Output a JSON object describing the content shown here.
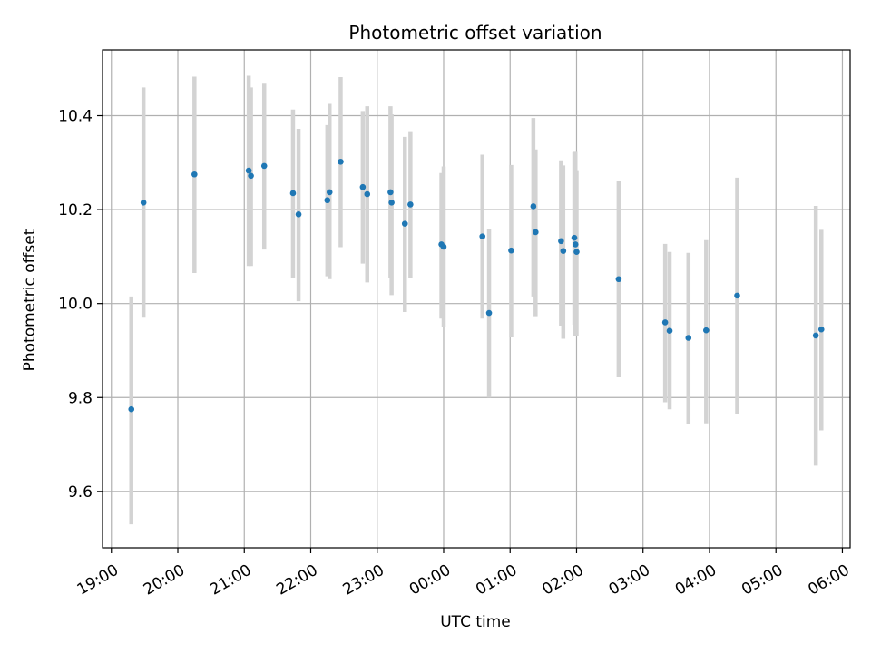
{
  "chart_data": {
    "type": "scatter",
    "title": "Photometric offset variation",
    "xlabel": "UTC time",
    "ylabel": "Photometric offset",
    "grid": true,
    "xlim": [
      "18:52",
      "06:07"
    ],
    "ylim": [
      9.48,
      10.54
    ],
    "x_tick_labels": [
      "19:00",
      "20:00",
      "21:00",
      "22:00",
      "23:00",
      "00:00",
      "01:00",
      "02:00",
      "03:00",
      "04:00",
      "05:00",
      "06:00"
    ],
    "y_tick_labels": [
      "9.6",
      "9.8",
      "10.0",
      "10.2",
      "10.4"
    ],
    "colors": {
      "points": "#1f77b4",
      "errorbars": "#d3d3d3",
      "grid": "#b0b0b0"
    },
    "series": [
      {
        "x": [
          "19:18",
          "19:29",
          "20:15",
          "21:04",
          "21:06",
          "21:18",
          "21:44",
          "21:49",
          "22:15",
          "22:17",
          "22:27",
          "22:47",
          "22:51",
          "23:12",
          "23:13",
          "23:25",
          "23:30",
          "23:58",
          "00:00",
          "00:35",
          "00:41",
          "01:01",
          "01:21",
          "01:23",
          "01:46",
          "01:48",
          "01:58",
          "01:59",
          "02:00",
          "02:38",
          "03:20",
          "03:24",
          "03:41",
          "03:57",
          "04:25",
          "05:36",
          "05:41"
        ],
        "y": [
          9.775,
          10.215,
          10.275,
          10.283,
          10.272,
          10.293,
          10.235,
          10.19,
          10.22,
          10.237,
          10.302,
          10.248,
          10.233,
          10.237,
          10.215,
          10.17,
          10.211,
          10.126,
          10.121,
          10.143,
          9.98,
          10.113,
          10.207,
          10.152,
          10.133,
          10.112,
          10.14,
          10.126,
          10.11,
          10.052,
          9.96,
          9.942,
          9.927,
          9.943,
          10.017,
          9.932,
          9.945
        ],
        "yerr_low": [
          9.53,
          9.97,
          10.065,
          10.08,
          10.08,
          10.115,
          10.055,
          10.005,
          10.058,
          10.052,
          10.12,
          10.085,
          10.045,
          10.055,
          10.018,
          9.982,
          10.055,
          9.968,
          9.95,
          9.968,
          9.8,
          9.928,
          10.015,
          9.973,
          9.953,
          9.925,
          9.955,
          9.93,
          9.93,
          9.843,
          9.79,
          9.775,
          9.743,
          9.745,
          9.765,
          9.655,
          9.73
        ],
        "yerr_high": [
          10.015,
          10.46,
          10.483,
          10.485,
          10.46,
          10.468,
          10.413,
          10.372,
          10.38,
          10.425,
          10.482,
          10.41,
          10.42,
          10.42,
          10.403,
          10.355,
          10.367,
          10.278,
          10.292,
          10.317,
          10.158,
          10.295,
          10.395,
          10.328,
          10.305,
          10.294,
          10.322,
          10.323,
          10.284,
          10.26,
          10.127,
          10.11,
          10.108,
          10.135,
          10.268,
          10.208,
          10.157
        ]
      }
    ]
  }
}
